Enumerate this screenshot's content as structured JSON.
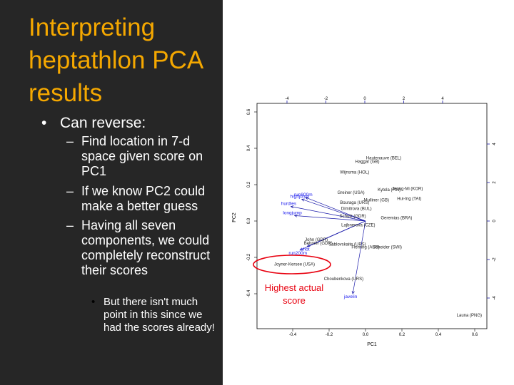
{
  "slide": {
    "title": "Interpreting heptathlon PCA results",
    "bullet": "Can reverse:",
    "sub_bullets": [
      "Find location in 7-d space given score on PC1",
      "If we know PC2 could make a better guess",
      "Having all seven components, we could completely reconstruct their scores"
    ],
    "sub_sub_bullet": "But there isn't much point in this since we had the scores already!",
    "callout": "Highest actual score",
    "colors": {
      "background_left": "#262626",
      "title": "#f5a800",
      "text": "#ffffff",
      "callout": "#e8000f",
      "arrows": "#0000cc"
    }
  },
  "chart_data": {
    "type": "scatter",
    "subtype": "biplot",
    "xlabel": "PC1",
    "ylabel": "PC2",
    "xlim": [
      -0.6,
      0.6
    ],
    "ylim": [
      -0.5,
      0.65
    ],
    "top_axis_ticks": [
      "-4",
      "-2",
      "0",
      "2",
      "4"
    ],
    "right_axis_ticks": [
      "4",
      "2",
      "0",
      "-2",
      "-4"
    ],
    "bottom_ticks": [
      "-0.4",
      "-0.2",
      "0.0",
      "0.2",
      "0.4",
      "0.6"
    ],
    "left_ticks": [
      "0.6",
      "0.4",
      "0.2",
      "0.0",
      "-0.2",
      "-0.4"
    ],
    "points": [
      {
        "label": "Hautenauve (BEL)",
        "x": 0.1,
        "y": 0.34
      },
      {
        "label": "Haggar (GB)",
        "x": 0.01,
        "y": 0.32
      },
      {
        "label": "Wijnsma (HOL)",
        "x": -0.06,
        "y": 0.26
      },
      {
        "label": "Kytola (FIN)",
        "x": 0.13,
        "y": 0.165
      },
      {
        "label": "Jeong-Mi (KOR)",
        "x": 0.23,
        "y": 0.17
      },
      {
        "label": "Hui-Ing (TAI)",
        "x": 0.24,
        "y": 0.115
      },
      {
        "label": "Greiner (USA)",
        "x": -0.08,
        "y": 0.15
      },
      {
        "label": "Mulliner (GB)",
        "x": 0.06,
        "y": 0.108
      },
      {
        "label": "Bouraga (URS)",
        "x": -0.06,
        "y": 0.095
      },
      {
        "label": "Dimitrova (BUL)",
        "x": -0.05,
        "y": 0.06
      },
      {
        "label": "Schulz (GDR)",
        "x": -0.07,
        "y": 0.02
      },
      {
        "label": "Geremias (BRA)",
        "x": 0.17,
        "y": 0.01
      },
      {
        "label": "Lajbnerova (CZE)",
        "x": -0.04,
        "y": -0.03
      },
      {
        "label": "John (GDR)",
        "x": -0.27,
        "y": -0.11
      },
      {
        "label": "Behmer (GDR)",
        "x": -0.26,
        "y": -0.13
      },
      {
        "label": "Sablovskaite (URS)",
        "x": -0.1,
        "y": -0.135
      },
      {
        "label": "Fleming (AUS)",
        "x": 0.0,
        "y": -0.15
      },
      {
        "label": "Scheider (SWI)",
        "x": 0.12,
        "y": -0.15
      },
      {
        "label": "Joyner-Kersee (USA)",
        "x": -0.39,
        "y": -0.245
      },
      {
        "label": "Choubenkova (URS)",
        "x": -0.12,
        "y": -0.325
      },
      {
        "label": "Launa (PNG)",
        "x": 0.57,
        "y": -0.525
      }
    ],
    "loadings": [
      {
        "label": "highjump",
        "x": -0.35,
        "y": 0.12
      },
      {
        "label": "longjump",
        "x": -0.39,
        "y": 0.03
      },
      {
        "label": "hurdles",
        "x": -0.41,
        "y": 0.08
      },
      {
        "label": "run200m",
        "x": -0.36,
        "y": -0.16
      },
      {
        "label": "shot",
        "x": -0.32,
        "y": -0.14
      },
      {
        "label": "run800m",
        "x": -0.33,
        "y": 0.13
      },
      {
        "label": "javelin",
        "x": -0.07,
        "y": -0.4
      }
    ],
    "highlight": "Joyner-Kersee (USA)"
  }
}
